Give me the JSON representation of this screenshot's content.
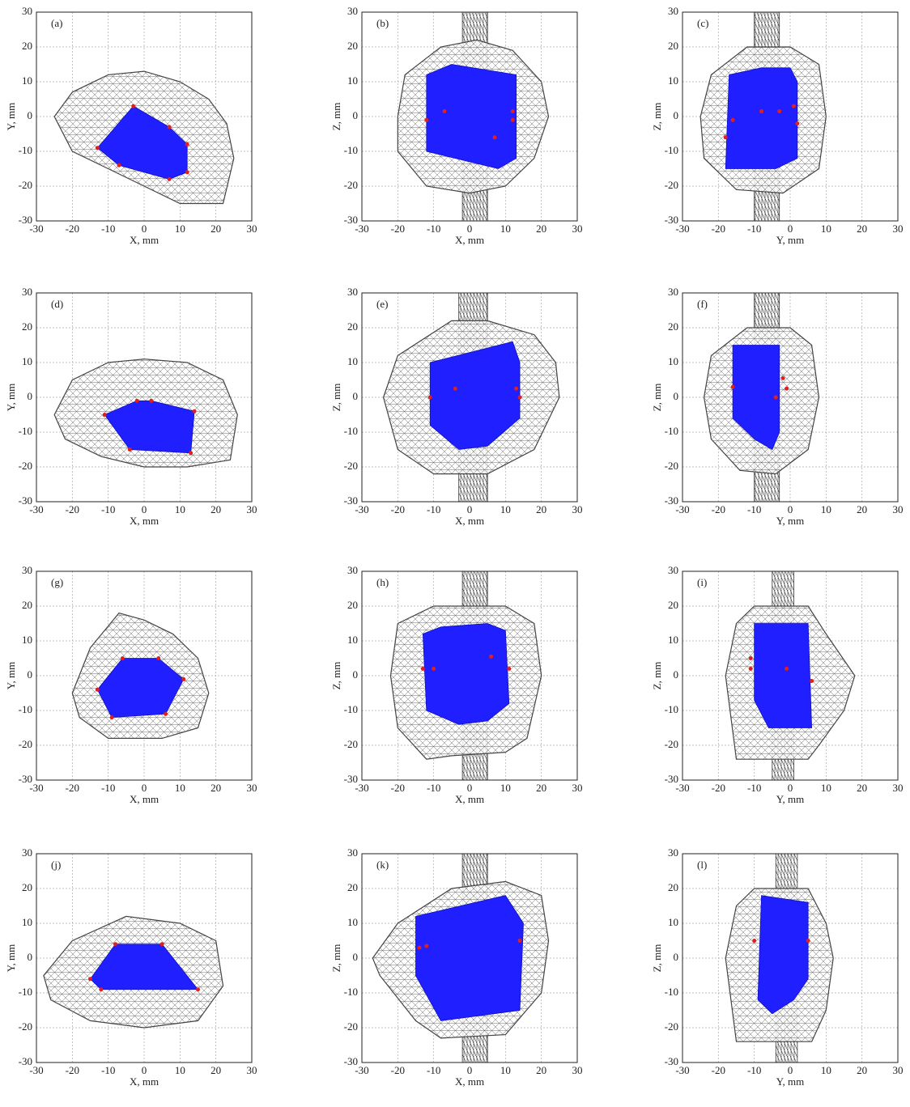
{
  "chart_data": [
    {
      "type": "polygon",
      "title": "(a)",
      "x_label": "X, mm",
      "y_label": "Y, mm",
      "xlim": [
        -30,
        30
      ],
      "ylim": [
        -30,
        30
      ],
      "xticks": [
        -30,
        -20,
        -10,
        0,
        10,
        20,
        30
      ],
      "yticks": [
        -30,
        -20,
        -10,
        0,
        10,
        20,
        30
      ],
      "grid": true,
      "outline": {
        "x": [
          -25,
          -20,
          -10,
          0,
          10,
          18,
          23,
          25,
          22,
          10,
          0,
          -10,
          -20
        ],
        "y": [
          0,
          7,
          12,
          13,
          10,
          5,
          -2,
          -12,
          -25,
          -25,
          -20,
          -15,
          -10
        ]
      },
      "polygon": {
        "color": "#1f1fff",
        "x": [
          -3,
          7,
          12,
          12,
          7,
          -7,
          -13
        ],
        "y": [
          3,
          -3,
          -8,
          -16,
          -18,
          -14,
          -9
        ]
      },
      "points": {
        "color": "#e0201e",
        "x": [
          -3,
          7,
          12,
          12,
          7,
          -7,
          -13
        ],
        "y": [
          3,
          -3,
          -8,
          -16,
          -18,
          -14,
          -9
        ]
      }
    },
    {
      "type": "polygon",
      "title": "(b)",
      "x_label": "X, mm",
      "y_label": "Z, mm",
      "xlim": [
        -30,
        30
      ],
      "ylim": [
        -30,
        30
      ],
      "xticks": [
        -30,
        -20,
        -10,
        0,
        10,
        20,
        30
      ],
      "yticks": [
        -30,
        -20,
        -10,
        0,
        10,
        20,
        30
      ],
      "grid": true,
      "outline": {
        "x": [
          -20,
          -18,
          -8,
          2,
          12,
          20,
          22,
          18,
          10,
          0,
          -12,
          -20
        ],
        "y": [
          0,
          12,
          20,
          22,
          19,
          10,
          0,
          -12,
          -20,
          -22,
          -20,
          -10
        ]
      },
      "rod": {
        "x": [
          -2,
          5
        ]
      },
      "polygon": {
        "color": "#1f1fff",
        "x": [
          -12,
          -5,
          13,
          13,
          8,
          -12
        ],
        "y": [
          12,
          15,
          12,
          -12,
          -15,
          -10
        ]
      },
      "points": {
        "color": "#e0201e",
        "x": [
          -12,
          -7,
          12,
          12,
          7
        ],
        "y": [
          -1,
          1.5,
          1.5,
          -1,
          -6
        ]
      }
    },
    {
      "type": "polygon",
      "title": "(c)",
      "x_label": "Y, mm",
      "y_label": "Z, mm",
      "xlim": [
        -30,
        30
      ],
      "ylim": [
        -30,
        30
      ],
      "xticks": [
        -30,
        -20,
        -10,
        0,
        10,
        20,
        30
      ],
      "yticks": [
        -30,
        -20,
        -10,
        0,
        10,
        20,
        30
      ],
      "grid": true,
      "outline": {
        "x": [
          -25,
          -22,
          -12,
          0,
          8,
          10,
          8,
          -2,
          -15,
          -24
        ],
        "y": [
          0,
          12,
          20,
          20,
          15,
          0,
          -15,
          -22,
          -21,
          -12
        ]
      },
      "rod": {
        "x": [
          -10,
          -3
        ]
      },
      "polygon": {
        "color": "#1f1fff",
        "x": [
          -17,
          -8,
          0,
          2,
          2,
          -4,
          -18
        ],
        "y": [
          12,
          14,
          14,
          10,
          -12,
          -15,
          -15
        ]
      },
      "points": {
        "color": "#e0201e",
        "x": [
          -18,
          -16,
          -8,
          -3,
          1,
          2
        ],
        "y": [
          -6,
          -1,
          1.5,
          1.5,
          3,
          -2
        ]
      }
    },
    {
      "type": "polygon",
      "title": "(d)",
      "x_label": "X, mm",
      "y_label": "Y, mm",
      "xlim": [
        -30,
        30
      ],
      "ylim": [
        -30,
        30
      ],
      "xticks": [
        -30,
        -20,
        -10,
        0,
        10,
        20,
        30
      ],
      "yticks": [
        -30,
        -20,
        -10,
        0,
        10,
        20,
        30
      ],
      "grid": true,
      "outline": {
        "x": [
          -25,
          -20,
          -10,
          0,
          12,
          22,
          26,
          24,
          12,
          0,
          -12,
          -22
        ],
        "y": [
          -5,
          5,
          10,
          11,
          10,
          5,
          -5,
          -18,
          -20,
          -20,
          -17,
          -12
        ]
      },
      "polygon": {
        "color": "#1f1fff",
        "x": [
          -11,
          -2,
          2,
          14,
          13,
          -4
        ],
        "y": [
          -5,
          -1,
          -1,
          -4,
          -16,
          -15
        ]
      },
      "points": {
        "color": "#e0201e",
        "x": [
          -11,
          -2,
          2,
          14,
          13,
          -4
        ],
        "y": [
          -5,
          -1,
          -1,
          -4,
          -16,
          -15
        ]
      }
    },
    {
      "type": "polygon",
      "title": "(e)",
      "x_label": "X, mm",
      "y_label": "Z, mm",
      "xlim": [
        -30,
        30
      ],
      "ylim": [
        -30,
        30
      ],
      "xticks": [
        -30,
        -20,
        -10,
        0,
        10,
        20,
        30
      ],
      "yticks": [
        -30,
        -20,
        -10,
        0,
        10,
        20,
        30
      ],
      "grid": true,
      "outline": {
        "x": [
          -24,
          -20,
          -5,
          5,
          18,
          24,
          25,
          18,
          5,
          -10,
          -20
        ],
        "y": [
          0,
          12,
          22,
          22,
          18,
          10,
          0,
          -15,
          -22,
          -22,
          -15
        ]
      },
      "rod": {
        "x": [
          -3,
          5
        ]
      },
      "polygon": {
        "color": "#1f1fff",
        "x": [
          -11,
          12,
          14,
          14,
          5,
          -3,
          -11
        ],
        "y": [
          10,
          16,
          10,
          -6,
          -14,
          -15,
          -8
        ]
      },
      "points": {
        "color": "#e0201e",
        "x": [
          -11,
          -4,
          13,
          14
        ],
        "y": [
          0,
          2.5,
          2.5,
          0
        ]
      }
    },
    {
      "type": "polygon",
      "title": "(f)",
      "x_label": "Y, mm",
      "y_label": "Z, mm",
      "xlim": [
        -30,
        30
      ],
      "ylim": [
        -30,
        30
      ],
      "xticks": [
        -30,
        -20,
        -10,
        0,
        10,
        20,
        30
      ],
      "yticks": [
        -30,
        -20,
        -10,
        0,
        10,
        20,
        30
      ],
      "grid": true,
      "outline": {
        "x": [
          -24,
          -22,
          -12,
          0,
          6,
          8,
          5,
          -4,
          -14,
          -22
        ],
        "y": [
          0,
          12,
          20,
          20,
          15,
          0,
          -15,
          -22,
          -21,
          -12
        ]
      },
      "rod": {
        "x": [
          -10,
          -3
        ]
      },
      "polygon": {
        "color": "#1f1fff",
        "x": [
          -16,
          -3,
          -3,
          -5,
          -10,
          -16
        ],
        "y": [
          15,
          15,
          -10,
          -15,
          -12,
          -6
        ]
      },
      "points": {
        "color": "#e0201e",
        "x": [
          -16,
          -2,
          -1,
          -4
        ],
        "y": [
          3,
          5.5,
          2.5,
          0
        ]
      }
    },
    {
      "type": "polygon",
      "title": "(g)",
      "x_label": "X, mm",
      "y_label": "Y, mm",
      "xlim": [
        -30,
        30
      ],
      "ylim": [
        -30,
        30
      ],
      "xticks": [
        -30,
        -20,
        -10,
        0,
        10,
        20,
        30
      ],
      "yticks": [
        -30,
        -20,
        -10,
        0,
        10,
        20,
        30
      ],
      "grid": true,
      "outline": {
        "x": [
          -20,
          -15,
          -7,
          0,
          8,
          15,
          18,
          15,
          5,
          -10,
          -18
        ],
        "y": [
          -5,
          8,
          18,
          16,
          12,
          5,
          -5,
          -15,
          -18,
          -18,
          -12
        ]
      },
      "polygon": {
        "color": "#1f1fff",
        "x": [
          -6,
          4,
          11,
          6,
          -9,
          -13
        ],
        "y": [
          5,
          5,
          -1,
          -11,
          -12,
          -4
        ]
      },
      "points": {
        "color": "#e0201e",
        "x": [
          -6,
          4,
          11,
          6,
          -9,
          -13
        ],
        "y": [
          5,
          5,
          -1,
          -11,
          -12,
          -4
        ]
      }
    },
    {
      "type": "polygon",
      "title": "(h)",
      "x_label": "X, mm",
      "y_label": "Z, mm",
      "xlim": [
        -30,
        30
      ],
      "ylim": [
        -30,
        30
      ],
      "xticks": [
        -30,
        -20,
        -10,
        0,
        10,
        20,
        30
      ],
      "yticks": [
        -30,
        -20,
        -10,
        0,
        10,
        20,
        30
      ],
      "grid": true,
      "outline": {
        "x": [
          -22,
          -20,
          -10,
          10,
          18,
          20,
          16,
          10,
          -5,
          -12,
          -20
        ],
        "y": [
          0,
          15,
          20,
          20,
          15,
          0,
          -18,
          -22,
          -23,
          -24,
          -15
        ]
      },
      "rod": {
        "x": [
          -2,
          5
        ]
      },
      "polygon": {
        "color": "#1f1fff",
        "x": [
          -13,
          -8,
          5,
          10,
          11,
          5,
          -3,
          -12
        ],
        "y": [
          12,
          14,
          15,
          13,
          -8,
          -13,
          -14,
          -10
        ]
      },
      "points": {
        "color": "#e0201e",
        "x": [
          -13,
          -10,
          6,
          11
        ],
        "y": [
          2,
          2,
          5.5,
          2
        ]
      }
    },
    {
      "type": "polygon",
      "title": "(i)",
      "x_label": "Y, mm",
      "y_label": "Z, mm",
      "xlim": [
        -30,
        30
      ],
      "ylim": [
        -30,
        30
      ],
      "xticks": [
        -30,
        -20,
        -10,
        0,
        10,
        20,
        30
      ],
      "yticks": [
        -30,
        -20,
        -10,
        0,
        10,
        20,
        30
      ],
      "grid": true,
      "outline": {
        "x": [
          -15,
          -10,
          5,
          10,
          18,
          15,
          8,
          5,
          -15,
          -18
        ],
        "y": [
          15,
          20,
          20,
          12,
          0,
          -10,
          -20,
          -24,
          -24,
          0
        ]
      },
      "rod": {
        "x": [
          -5,
          1
        ]
      },
      "polygon": {
        "color": "#1f1fff",
        "x": [
          -10,
          5,
          6,
          -6,
          -10
        ],
        "y": [
          15,
          15,
          -15,
          -15,
          -7
        ]
      },
      "points": {
        "color": "#e0201e",
        "x": [
          -11,
          -11,
          -1,
          6
        ],
        "y": [
          5,
          2,
          2,
          -1.5
        ]
      }
    },
    {
      "type": "polygon",
      "title": "(j)",
      "x_label": "X, mm",
      "y_label": "Y, mm",
      "xlim": [
        -30,
        30
      ],
      "ylim": [
        -30,
        30
      ],
      "xticks": [
        -30,
        -20,
        -10,
        0,
        10,
        20,
        30
      ],
      "yticks": [
        -30,
        -20,
        -10,
        0,
        10,
        20,
        30
      ],
      "grid": true,
      "outline": {
        "x": [
          -28,
          -20,
          -5,
          10,
          20,
          22,
          15,
          0,
          -15,
          -26
        ],
        "y": [
          -5,
          5,
          12,
          10,
          5,
          -8,
          -18,
          -20,
          -18,
          -12
        ]
      },
      "polygon": {
        "color": "#1f1fff",
        "x": [
          -8,
          5,
          15,
          -12,
          -15
        ],
        "y": [
          4,
          4,
          -9,
          -9,
          -6
        ]
      },
      "points": {
        "color": "#e0201e",
        "x": [
          -8,
          5,
          15,
          -12,
          -15
        ],
        "y": [
          4,
          4,
          -9,
          -9,
          -6
        ]
      }
    },
    {
      "type": "polygon",
      "title": "(k)",
      "x_label": "X, mm",
      "y_label": "Z, mm",
      "xlim": [
        -30,
        30
      ],
      "ylim": [
        -30,
        30
      ],
      "xticks": [
        -30,
        -20,
        -10,
        0,
        10,
        20,
        30
      ],
      "yticks": [
        -30,
        -20,
        -10,
        0,
        10,
        20,
        30
      ],
      "grid": true,
      "outline": {
        "x": [
          -27,
          -20,
          -5,
          10,
          20,
          22,
          20,
          10,
          -8,
          -15,
          -25
        ],
        "y": [
          0,
          10,
          20,
          22,
          18,
          5,
          -10,
          -22,
          -23,
          -18,
          -5
        ]
      },
      "rod": {
        "x": [
          -2,
          5
        ]
      },
      "polygon": {
        "color": "#1f1fff",
        "x": [
          -15,
          10,
          15,
          14,
          -8,
          -15
        ],
        "y": [
          12,
          18,
          10,
          -15,
          -18,
          -5
        ]
      },
      "points": {
        "color": "#e0201e",
        "x": [
          -14,
          -12,
          14
        ],
        "y": [
          3,
          3.5,
          5
        ]
      }
    },
    {
      "type": "polygon",
      "title": "(l)",
      "x_label": "Y, mm",
      "y_label": "Z, mm",
      "xlim": [
        -30,
        30
      ],
      "ylim": [
        -30,
        30
      ],
      "xticks": [
        -30,
        -20,
        -10,
        0,
        10,
        20,
        30
      ],
      "yticks": [
        -30,
        -20,
        -10,
        0,
        10,
        20,
        30
      ],
      "grid": true,
      "outline": {
        "x": [
          -15,
          -10,
          5,
          10,
          12,
          10,
          6,
          -15,
          -18
        ],
        "y": [
          15,
          20,
          20,
          10,
          0,
          -15,
          -24,
          -24,
          0
        ]
      },
      "rod": {
        "x": [
          -4,
          2
        ]
      },
      "polygon": {
        "color": "#1f1fff",
        "x": [
          -8,
          5,
          5,
          1,
          -5,
          -9
        ],
        "y": [
          18,
          16,
          -6,
          -12,
          -16,
          -12
        ]
      },
      "points": {
        "color": "#e0201e",
        "x": [
          -10,
          5
        ],
        "y": [
          5,
          5
        ]
      }
    }
  ]
}
